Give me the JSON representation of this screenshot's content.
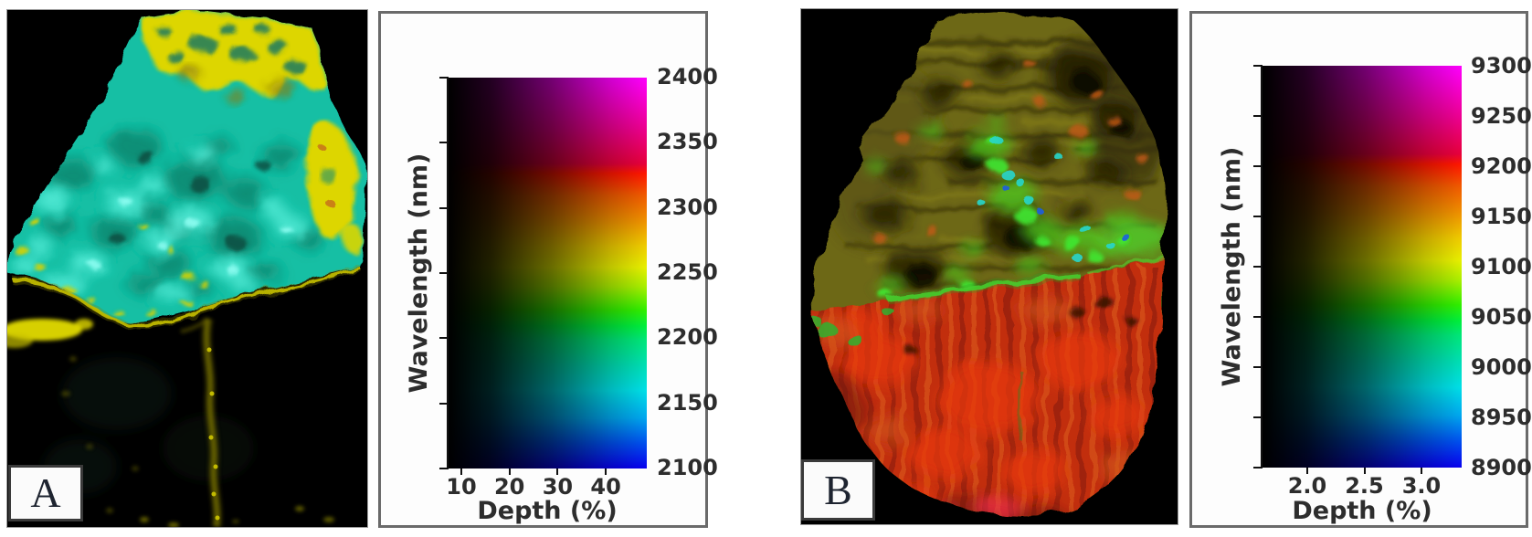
{
  "figure": {
    "background_color": "#ffffff",
    "panels": [
      {
        "label": "A",
        "sample_image": {
          "description": "False-colour hyperspectral mineral map of rock sample A: mottled cyan-teal body with bright yellow patches along the top and right edges and yellow specks, on a black background; faint yellow vein running downward below the sample",
          "background_color": "#000000",
          "body_color": "#15c3a7",
          "patch_color": "#ddd600"
        },
        "legend": {
          "y_axis_label": "Wavelength (nm)",
          "x_axis_label": "Depth (%)",
          "y_ticks": [
            "2400",
            "2350",
            "2300",
            "2250",
            "2200",
            "2150",
            "2100"
          ],
          "x_ticks": [
            "10",
            "20",
            "30",
            "40"
          ]
        }
      },
      {
        "label": "B",
        "sample_image": {
          "description": "False-colour hyperspectral mineral map of rock sample B: olive-green mottled upper half with bright green, cyan and orange patches, red-orange striated lower half separated by a diagonal boundary with a bright green seam, on a black background",
          "background_color": "#000000",
          "body_color": "#6d6715",
          "lower_color": "#c22f10"
        },
        "legend": {
          "y_axis_label": "Wavelength (nm)",
          "x_axis_label": "Depth (%)",
          "y_ticks": [
            "9300",
            "9250",
            "9200",
            "9150",
            "9100",
            "9050",
            "9000",
            "8950",
            "8900"
          ],
          "x_ticks": [
            "2.0",
            "2.5",
            "3.0"
          ]
        }
      }
    ],
    "colormap": {
      "type": "2D",
      "vertical_encoding": "wavelength mapped to hue (blue - cyan - green - yellow - red - magenta, bottom to top)",
      "horizontal_encoding": "depth mapped to brightness (black at left to full colour at right)",
      "hue_stops_top_to_bottom": [
        "#ff00ff",
        "#ee0090",
        "#e8003c",
        "#ff1600",
        "#f25a00",
        "#f09000",
        "#f0cc00",
        "#e8f000",
        "#a8f000",
        "#30f000",
        "#00f03c",
        "#00e878",
        "#00e0b4",
        "#00e0e8",
        "#00a8f0",
        "#0050f0",
        "#0800f0"
      ]
    }
  },
  "chart_data": [
    {
      "type": "heatmap",
      "role": "2d-colorbar-legend",
      "panel": "A",
      "xlabel": "Depth (%)",
      "ylabel": "Wavelength (nm)",
      "x_ticks": [
        10,
        20,
        30,
        40
      ],
      "x_range": [
        8,
        48
      ],
      "y_ticks": [
        2100,
        2150,
        2200,
        2250,
        2300,
        2350,
        2400
      ],
      "y_range": [
        2100,
        2400
      ],
      "grid": false,
      "encoding": {
        "vertical": "hue = wavelength (nm)",
        "horizontal": "brightness = depth (%)"
      }
    },
    {
      "type": "heatmap",
      "role": "2d-colorbar-legend",
      "panel": "B",
      "xlabel": "Depth (%)",
      "ylabel": "Wavelength (nm)",
      "x_ticks": [
        2.0,
        2.5,
        3.0
      ],
      "x_range": [
        1.7,
        3.4
      ],
      "y_ticks": [
        8900,
        8950,
        9000,
        9050,
        9100,
        9150,
        9200,
        9250,
        9300
      ],
      "y_range": [
        8900,
        9300
      ],
      "grid": false,
      "encoding": {
        "vertical": "hue = wavelength (nm)",
        "horizontal": "brightness = depth (%)"
      }
    }
  ]
}
